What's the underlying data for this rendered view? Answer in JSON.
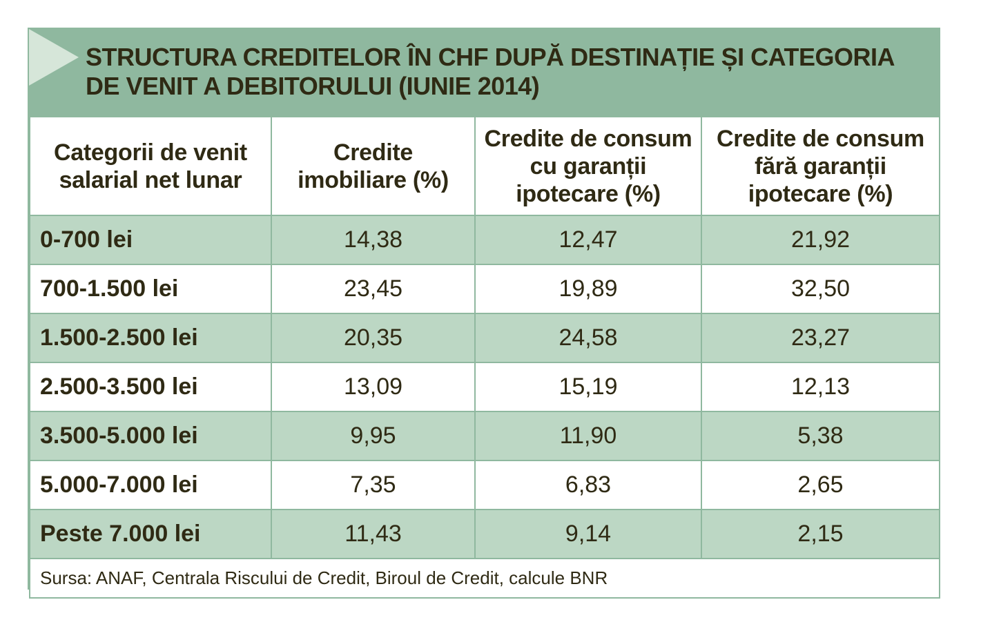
{
  "title": "STRUCTURA CREDITELOR ÎN CHF DUPĂ DESTINAȚIE ȘI CATEGORIA DE VENIT A DEBITORULUI (IUNIE 2014)",
  "colors": {
    "header_green": "#8fb89f",
    "row_shade": "#bcd7c4",
    "arrow": "#d6e6d9",
    "text": "#2f2a14"
  },
  "table": {
    "headers": [
      "Categorii de venit salarial net lunar",
      "Credite imobiliare (%)",
      "Credite de consum cu garanții ipotecare (%)",
      "Credite de consum fără garanții ipotecare (%)"
    ],
    "rows": [
      {
        "category": "0-700 lei",
        "values": [
          "14,38",
          "12,47",
          "21,92"
        ]
      },
      {
        "category": "700-1.500 lei",
        "values": [
          "23,45",
          "19,89",
          "32,50"
        ]
      },
      {
        "category": "1.500-2.500 lei",
        "values": [
          "20,35",
          "24,58",
          "23,27"
        ]
      },
      {
        "category": "2.500-3.500 lei",
        "values": [
          "13,09",
          "15,19",
          "12,13"
        ]
      },
      {
        "category": "3.500-5.000 lei",
        "values": [
          "9,95",
          "11,90",
          "5,38"
        ]
      },
      {
        "category": "5.000-7.000 lei",
        "values": [
          "7,35",
          "6,83",
          "2,65"
        ]
      },
      {
        "category": "Peste 7.000 lei",
        "values": [
          "11,43",
          "9,14",
          "2,15"
        ]
      }
    ],
    "source": "Sursa: ANAF, Centrala Riscului de Credit, Biroul de Credit, calcule BNR"
  }
}
